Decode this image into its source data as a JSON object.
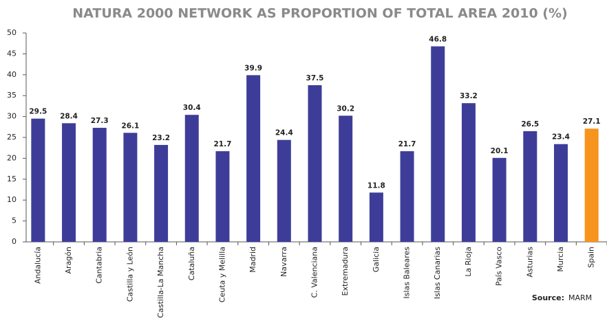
{
  "chart_data": {
    "type": "bar",
    "title": "NATURA 2000 NETWORK AS PROPORTION OF TOTAL AREA 2010 (%)",
    "categories": [
      "Andalucía",
      "Aragón",
      "Cantabria",
      "Castilla y León",
      "Castilla-La Mancha",
      "Cataluña",
      "Ceuta y Melilla",
      "Madrid",
      "Navarra",
      "C. Valenciana",
      "Extremadura",
      "Galicia",
      "Islas Baleares",
      "Islas Canarias",
      "La Rioja",
      "País Vasco",
      "Asturias",
      "Murcia",
      "Spain"
    ],
    "values": [
      29.5,
      28.4,
      27.3,
      26.1,
      23.2,
      30.4,
      21.7,
      39.9,
      24.4,
      37.5,
      30.2,
      11.8,
      21.7,
      46.8,
      33.2,
      20.1,
      26.5,
      23.4,
      27.1
    ],
    "colors": [
      "#3d3d99",
      "#3d3d99",
      "#3d3d99",
      "#3d3d99",
      "#3d3d99",
      "#3d3d99",
      "#3d3d99",
      "#3d3d99",
      "#3d3d99",
      "#3d3d99",
      "#3d3d99",
      "#3d3d99",
      "#3d3d99",
      "#3d3d99",
      "#3d3d99",
      "#3d3d99",
      "#3d3d99",
      "#3d3d99",
      "#f7941d"
    ],
    "ylim": [
      0,
      50
    ],
    "yticks": [
      0,
      5,
      10,
      15,
      20,
      25,
      30,
      35,
      40,
      45,
      50
    ],
    "grid": false,
    "source_label": "Source:",
    "source": "MARM"
  }
}
